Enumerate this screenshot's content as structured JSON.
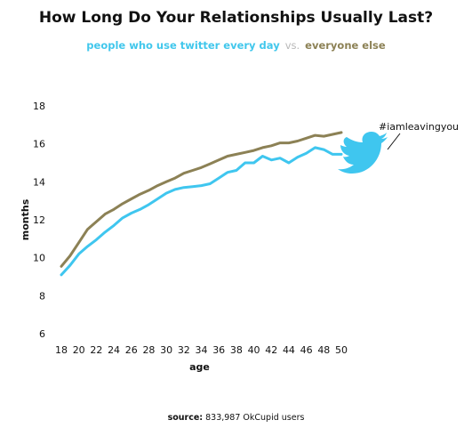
{
  "chart_data": {
    "type": "line",
    "title": "How Long Do Your Relationships Usually Last?",
    "subtitle_vs": "vs.",
    "xlabel": "age",
    "ylabel": "months",
    "xlim": [
      18,
      50
    ],
    "ylim": [
      6,
      18
    ],
    "xticks": [
      "18",
      "20",
      "22",
      "24",
      "26",
      "28",
      "30",
      "32",
      "34",
      "36",
      "38",
      "40",
      "42",
      "44",
      "46",
      "48",
      "50"
    ],
    "yticks": [
      "6",
      "8",
      "10",
      "12",
      "14",
      "16",
      "18"
    ],
    "grid": false,
    "x": [
      18,
      19,
      20,
      21,
      22,
      23,
      24,
      25,
      26,
      27,
      28,
      29,
      30,
      31,
      32,
      33,
      34,
      35,
      36,
      37,
      38,
      39,
      40,
      41,
      42,
      43,
      44,
      45,
      46,
      47,
      48,
      49,
      50
    ],
    "series": [
      {
        "name": "people who use twitter every day",
        "color": "#3fc6ef",
        "values": [
          9.1,
          9.6,
          10.2,
          10.6,
          10.95,
          11.35,
          11.7,
          12.1,
          12.35,
          12.55,
          12.8,
          13.1,
          13.4,
          13.6,
          13.7,
          13.75,
          13.8,
          13.9,
          14.2,
          14.5,
          14.6,
          15.0,
          15.0,
          15.35,
          15.15,
          15.25,
          15.0,
          15.3,
          15.5,
          15.8,
          15.7,
          15.45,
          15.45
        ]
      },
      {
        "name": "everyone else",
        "color": "#8c8155",
        "values": [
          9.55,
          10.1,
          10.8,
          11.5,
          11.9,
          12.3,
          12.55,
          12.85,
          13.1,
          13.35,
          13.55,
          13.8,
          14.0,
          14.2,
          14.45,
          14.6,
          14.75,
          14.95,
          15.15,
          15.35,
          15.45,
          15.55,
          15.65,
          15.8,
          15.9,
          16.05,
          16.05,
          16.15,
          16.3,
          16.45,
          16.4,
          16.5,
          16.6
        ]
      }
    ],
    "annotation": "#iamleavingyou",
    "source_label": "source:",
    "source_text": "833,987 OkCupid users"
  },
  "icons": {
    "bird": "twitter-bird-icon"
  },
  "colors": {
    "twitter": "#3fc6ef",
    "everyone": "#8c8155"
  }
}
